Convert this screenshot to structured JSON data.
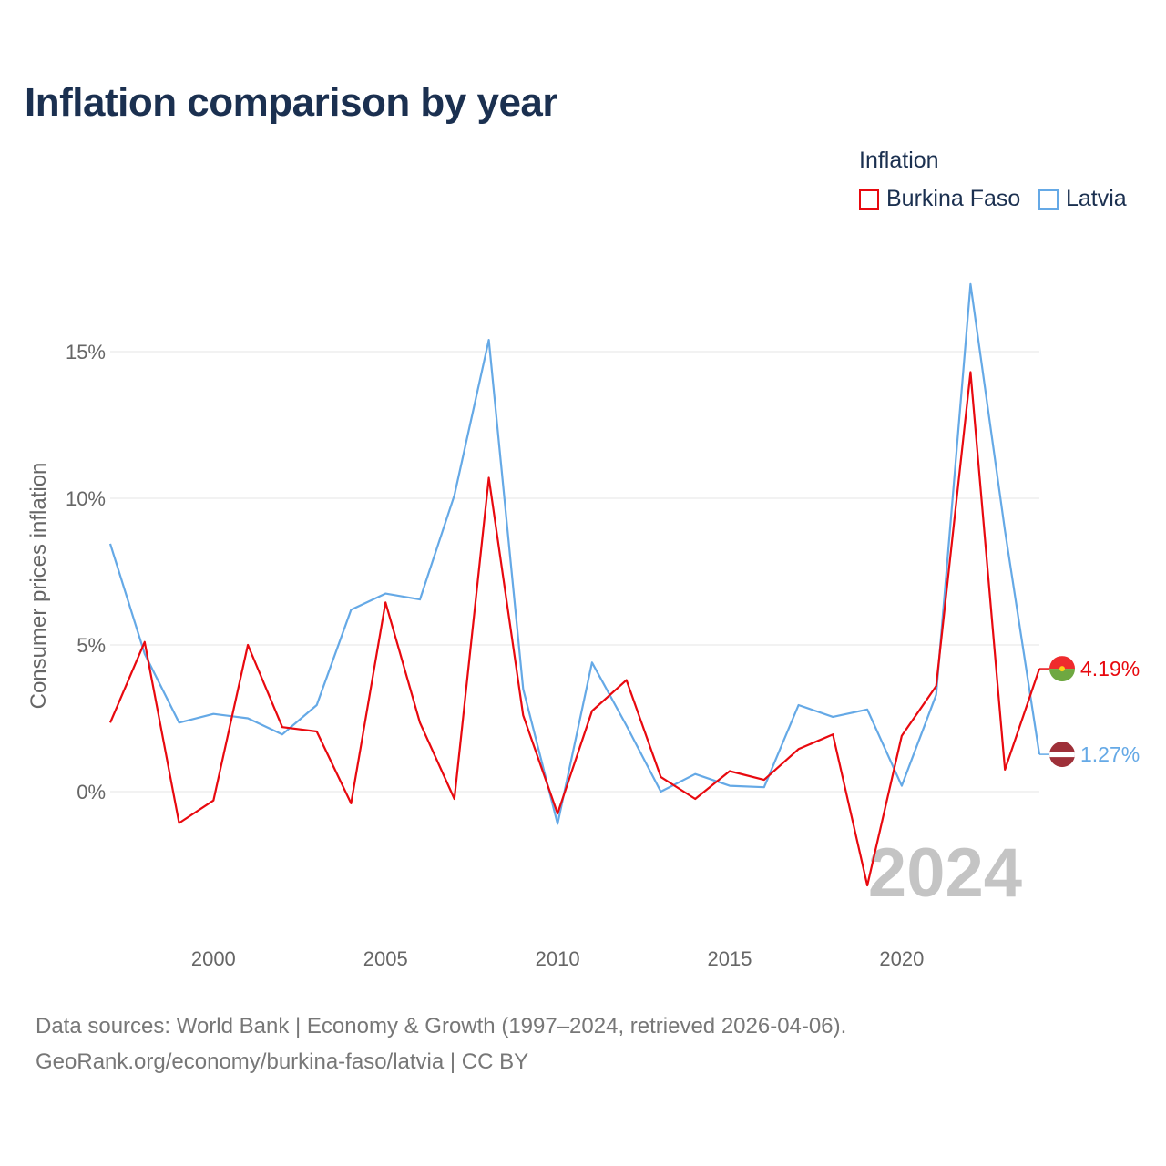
{
  "title": "Inflation comparison by year",
  "legend": {
    "title": "Inflation",
    "items": [
      {
        "name": "Burkina Faso",
        "color": "#e8090f"
      },
      {
        "name": "Latvia",
        "color": "#65a9e6"
      }
    ]
  },
  "footer": {
    "line1": "Data sources: World Bank | Economy & Growth (1997–2024, retrieved 2026-04-06).",
    "line2": "GeoRank.org/economy/burkina-faso/latvia | CC BY"
  },
  "chart_data": {
    "type": "line",
    "title": "Inflation comparison by year",
    "ylabel": "Consumer prices inflation",
    "xlabel": "",
    "xlim": [
      1997,
      2024
    ],
    "ylim": [
      -4.5,
      17.5
    ],
    "xticks": [
      2000,
      2005,
      2010,
      2015,
      2020
    ],
    "xtick_labels": [
      "2000",
      "2005",
      "2010",
      "2015",
      "2020"
    ],
    "yticks": [
      0,
      5,
      10,
      15
    ],
    "ytick_labels": [
      "0%",
      "5%",
      "10%",
      "15%"
    ],
    "year_watermark": "2024",
    "x": [
      1997,
      1998,
      1999,
      2000,
      2001,
      2002,
      2003,
      2004,
      2005,
      2006,
      2007,
      2008,
      2009,
      2010,
      2011,
      2012,
      2013,
      2014,
      2015,
      2016,
      2017,
      2018,
      2019,
      2020,
      2021,
      2022,
      2023,
      2024
    ],
    "series": [
      {
        "name": "Burkina Faso",
        "color": "#e8090f",
        "end_label": "4.19%",
        "values": [
          2.35,
          5.1,
          -1.07,
          -0.3,
          5.0,
          2.2,
          2.05,
          -0.4,
          6.45,
          2.35,
          -0.25,
          10.7,
          2.6,
          -0.75,
          2.75,
          3.8,
          0.5,
          -0.25,
          0.7,
          0.4,
          1.45,
          1.95,
          -3.2,
          1.9,
          3.6,
          14.3,
          0.75,
          4.19
        ]
      },
      {
        "name": "Latvia",
        "color": "#65a9e6",
        "end_label": "1.27%",
        "values": [
          8.45,
          4.7,
          2.35,
          2.65,
          2.5,
          1.95,
          2.95,
          6.2,
          6.75,
          6.55,
          10.1,
          15.4,
          3.5,
          -1.1,
          4.4,
          2.25,
          0.0,
          0.6,
          0.2,
          0.15,
          2.95,
          2.55,
          2.8,
          0.2,
          3.3,
          17.3,
          8.9,
          1.27
        ]
      }
    ]
  }
}
